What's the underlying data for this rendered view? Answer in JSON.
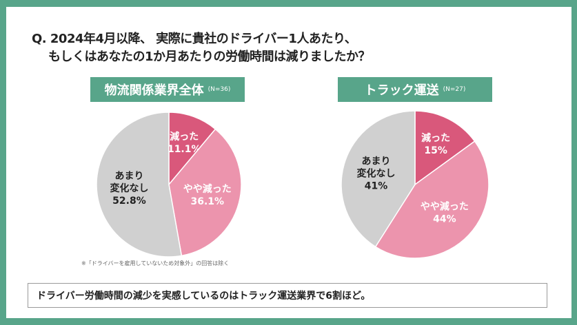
{
  "question": {
    "line1": "Q. 2024年4月以降、 実際に貴社のドライバー1人あたり、",
    "line2": "もしくはあなたの1か月あたりの労働時間は減りましたか？"
  },
  "chart_data": [
    {
      "type": "pie",
      "title": "物流関係業界全体",
      "n_label": "(N=36)",
      "slices": [
        {
          "label": "減った",
          "value": 11.1,
          "value_label": "11.1%",
          "color": "#d9587b"
        },
        {
          "label": "やや減った",
          "value": 36.1,
          "value_label": "36.1%",
          "color": "#ec94ad"
        },
        {
          "label": "あまり変化なし",
          "label_lines": [
            "あまり",
            "変化なし"
          ],
          "value": 52.8,
          "value_label": "52.8%",
          "color": "#d0d0d0"
        }
      ]
    },
    {
      "type": "pie",
      "title": "トラック運送",
      "n_label": "(N=27)",
      "slices": [
        {
          "label": "減った",
          "value": 15,
          "value_label": "15%",
          "color": "#d9587b"
        },
        {
          "label": "やや減った",
          "value": 44,
          "value_label": "44%",
          "color": "#ec94ad"
        },
        {
          "label": "あまり変化なし",
          "label_lines": [
            "あまり",
            "変化なし"
          ],
          "value": 41,
          "value_label": "41%",
          "color": "#d0d0d0"
        }
      ]
    }
  ],
  "footnote": "※「ドライバーを雇用していないため対象外」の回答は除く",
  "summary": "ドライバー労働時間の減少を実感しているのはトラック運送業界で6割ほど。"
}
